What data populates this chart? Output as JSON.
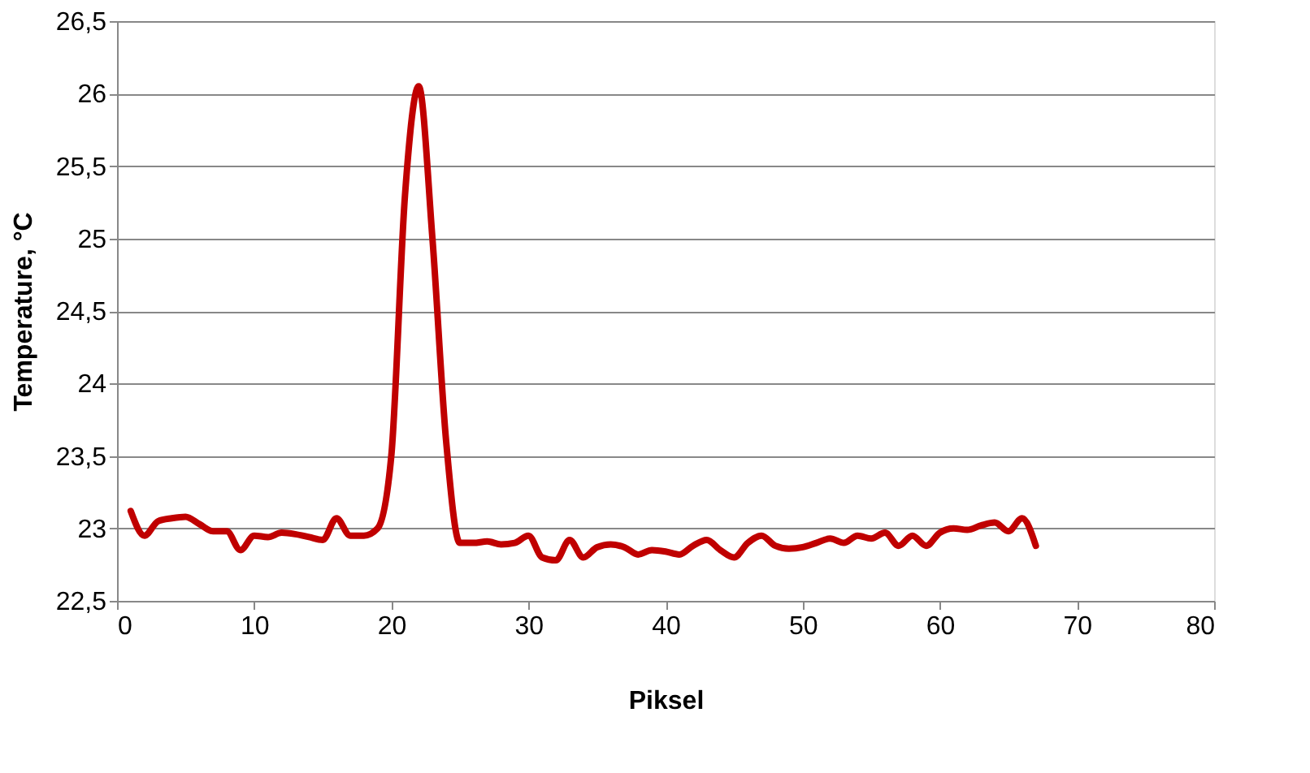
{
  "chart_data": {
    "type": "line",
    "xlabel": "Piksel",
    "ylabel": "Temperature, °C",
    "x": [
      1,
      2,
      3,
      4,
      5,
      6,
      7,
      8,
      9,
      10,
      11,
      12,
      13,
      14,
      15,
      16,
      17,
      18,
      19,
      20,
      21,
      22,
      23,
      24,
      25,
      26,
      27,
      28,
      29,
      30,
      31,
      32,
      33,
      34,
      35,
      36,
      37,
      38,
      39,
      40,
      41,
      42,
      43,
      44,
      45,
      46,
      47,
      48,
      49,
      50,
      51,
      52,
      53,
      54,
      55,
      56,
      57,
      58,
      59,
      60,
      61,
      62,
      63,
      64,
      65,
      66,
      67
    ],
    "series": [
      {
        "color": "#c00000",
        "values": [
          23.12,
          22.95,
          23.05,
          23.07,
          23.08,
          23.03,
          22.98,
          22.98,
          22.85,
          22.95,
          22.94,
          22.97,
          22.96,
          22.94,
          22.92,
          23.07,
          22.95,
          22.95,
          23.0,
          23.5,
          25.3,
          26.05,
          25.0,
          23.6,
          22.9,
          22.9,
          22.91,
          22.89,
          22.9,
          22.95,
          22.8,
          22.78,
          22.92,
          22.8,
          22.87,
          22.89,
          22.87,
          22.82,
          22.85,
          22.84,
          22.82,
          22.88,
          22.92,
          22.85,
          22.8,
          22.9,
          22.95,
          22.88,
          22.86,
          22.87,
          22.9,
          22.93,
          22.9,
          22.95,
          22.93,
          22.97,
          22.88,
          22.95,
          22.88,
          22.97,
          23.0,
          22.99,
          23.02,
          23.04,
          22.98,
          23.07,
          22.88
        ]
      }
    ],
    "xlim": [
      0,
      80
    ],
    "xticks": [
      0,
      10,
      20,
      30,
      40,
      50,
      60,
      70,
      80
    ],
    "ylim": [
      22.5,
      26.5
    ],
    "yticks": [
      {
        "value": 22.5,
        "label": "22,5"
      },
      23,
      {
        "value": 23.5,
        "label": "23,5"
      },
      24,
      {
        "value": 24.5,
        "label": "24,5"
      },
      25,
      {
        "value": 25.5,
        "label": "25,5"
      },
      26,
      {
        "value": 26.5,
        "label": "26,5"
      }
    ],
    "grid": "y",
    "legend": false,
    "marker": "none",
    "line_style": "solid"
  }
}
